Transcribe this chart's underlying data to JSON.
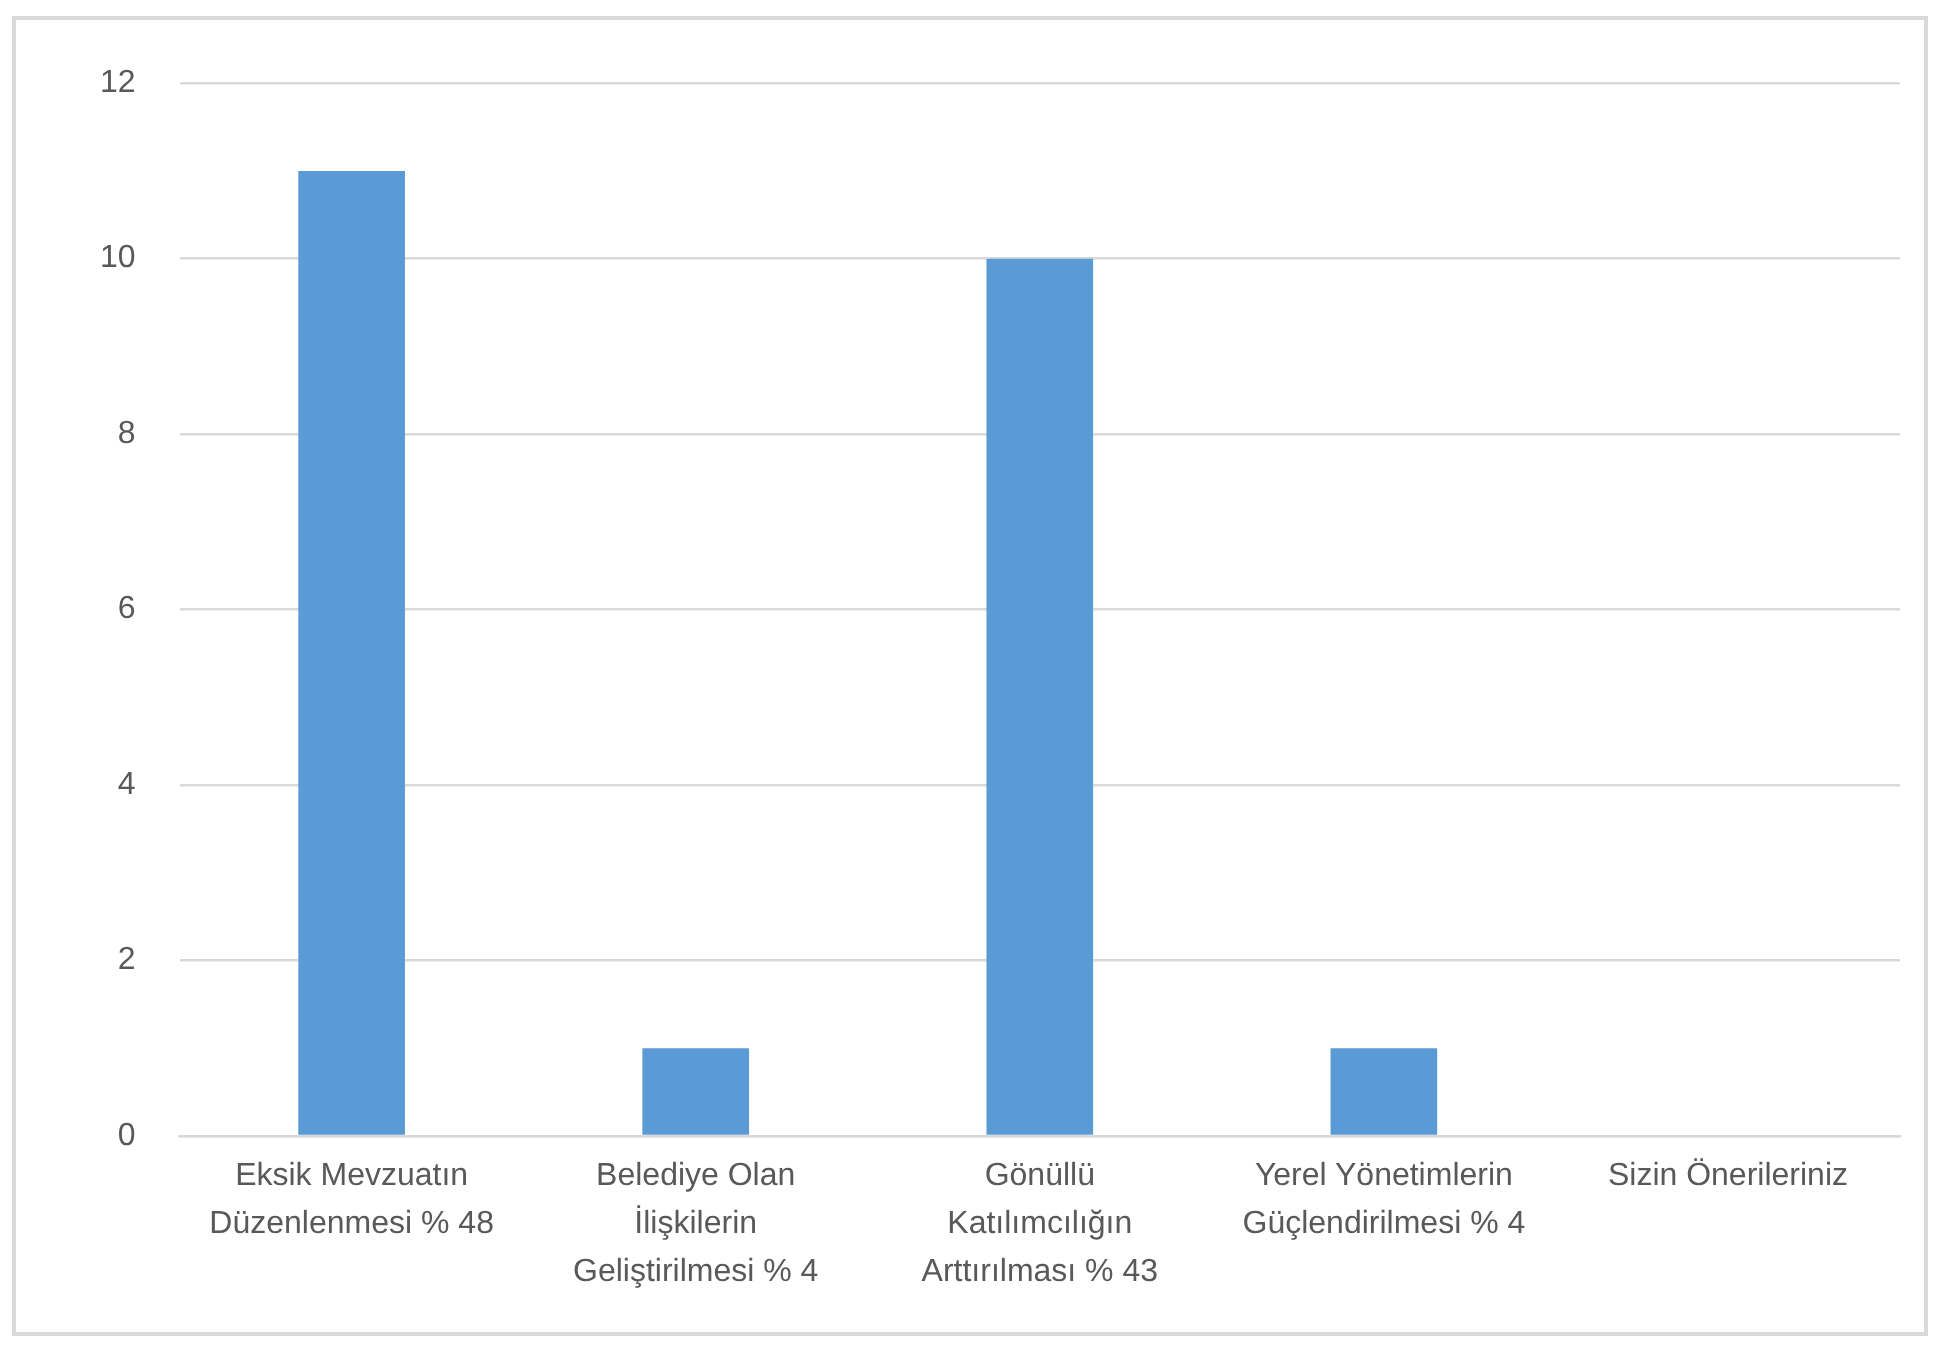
{
  "chart_data": {
    "type": "bar",
    "categories": [
      "Eksik Mevzuatın Düzenlenmesi % 48",
      "Belediye Olan İlişkilerin Geliştirilmesi % 4",
      "Gönüllü Katılımcılığın Arttırılması % 43",
      "Yerel Yönetimlerin Güçlendirilmesi % 4",
      "Sizin Önerileriniz"
    ],
    "values": [
      11,
      1,
      10,
      1,
      0
    ],
    "color": "#5b9bd5",
    "ylim": [
      0,
      12
    ],
    "yticks": [
      0,
      2,
      4,
      6,
      8,
      10,
      12
    ],
    "grid": "y",
    "legend": false
  }
}
